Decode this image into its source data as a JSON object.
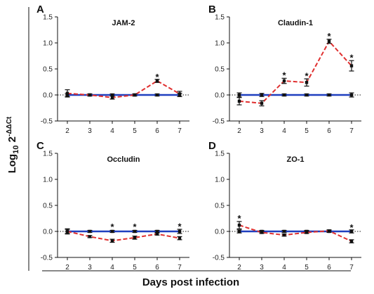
{
  "figure": {
    "xlabel": "Days post infection",
    "ylabel_base": "Log",
    "ylabel_sub": "10",
    "ylabel_tail": " 2",
    "ylabel_sup": "-ΔΔCt"
  },
  "chart_data": [
    {
      "type": "line",
      "panel_label": "A",
      "title": "JAM-2",
      "x": [
        2,
        3,
        4,
        5,
        6,
        7
      ],
      "xticks": [
        "2",
        "3",
        "4",
        "5",
        "6",
        "7"
      ],
      "yticks": [
        "-0.5",
        "0.0",
        "0.5",
        "1.0",
        "1.5"
      ],
      "ylim": [
        -0.5,
        1.5
      ],
      "series": [
        {
          "color": "#1f3fbf",
          "style": "solid",
          "values": [
            0.0,
            0.0,
            0.0,
            0.0,
            0.0,
            0.0
          ],
          "errors": [
            0.03,
            0.02,
            0.02,
            0.02,
            0.02,
            0.03
          ]
        },
        {
          "color": "#e03030",
          "style": "dashed",
          "values": [
            0.03,
            0.0,
            -0.05,
            0.0,
            0.27,
            0.02
          ],
          "errors": [
            0.07,
            0.02,
            0.03,
            0.02,
            0.03,
            0.05
          ]
        }
      ],
      "significant": [
        {
          "x": 6,
          "y": 0.3,
          "label": "*"
        }
      ]
    },
    {
      "type": "line",
      "panel_label": "B",
      "title": "Claudin-1",
      "x": [
        2,
        3,
        4,
        5,
        6,
        7
      ],
      "xticks": [
        "2",
        "3",
        "4",
        "5",
        "6",
        "7"
      ],
      "yticks": [
        "-0.5",
        "0.0",
        "0.5",
        "1.0",
        "1.5"
      ],
      "ylim": [
        -0.5,
        1.5
      ],
      "series": [
        {
          "color": "#1f3fbf",
          "style": "solid",
          "values": [
            0.0,
            0.0,
            0.0,
            0.0,
            0.0,
            0.0
          ],
          "errors": [
            0.04,
            0.03,
            0.02,
            0.02,
            0.02,
            0.04
          ]
        },
        {
          "color": "#e03030",
          "style": "dashed",
          "values": [
            -0.12,
            -0.16,
            0.27,
            0.24,
            1.03,
            0.56
          ],
          "errors": [
            0.07,
            0.05,
            0.05,
            0.07,
            0.04,
            0.1
          ]
        }
      ],
      "significant": [
        {
          "x": 4,
          "y": 0.33,
          "label": "*"
        },
        {
          "x": 5,
          "y": 0.32,
          "label": "*"
        },
        {
          "x": 6,
          "y": 1.08,
          "label": "*"
        },
        {
          "x": 7,
          "y": 0.67,
          "label": "*"
        }
      ]
    },
    {
      "type": "line",
      "panel_label": "C",
      "title": "Occludin",
      "x": [
        2,
        3,
        4,
        5,
        6,
        7
      ],
      "xticks": [
        "2",
        "3",
        "4",
        "5",
        "6",
        "7"
      ],
      "yticks": [
        "-0.5",
        "0.0",
        "0.5",
        "1.0",
        "1.5"
      ],
      "ylim": [
        -0.5,
        1.5
      ],
      "series": [
        {
          "color": "#1f3fbf",
          "style": "solid",
          "values": [
            0.0,
            0.0,
            0.0,
            0.0,
            0.0,
            0.0
          ],
          "errors": [
            0.04,
            0.02,
            0.02,
            0.02,
            0.02,
            0.04
          ]
        },
        {
          "color": "#e03030",
          "style": "dashed",
          "values": [
            0.0,
            -0.1,
            -0.18,
            -0.12,
            -0.05,
            -0.13
          ],
          "errors": [
            0.05,
            0.02,
            0.03,
            0.03,
            0.02,
            0.03
          ]
        }
      ],
      "significant": [
        {
          "x": 4,
          "y": 0.04,
          "label": "*"
        },
        {
          "x": 5,
          "y": 0.04,
          "label": "*"
        },
        {
          "x": 7,
          "y": 0.05,
          "label": "*"
        }
      ]
    },
    {
      "type": "line",
      "panel_label": "D",
      "title": "ZO-1",
      "x": [
        2,
        3,
        4,
        5,
        6,
        7
      ],
      "xticks": [
        "2",
        "3",
        "4",
        "5",
        "6",
        "7"
      ],
      "yticks": [
        "-0.5",
        "0.0",
        "0.5",
        "1.0",
        "1.5"
      ],
      "ylim": [
        -0.5,
        1.5
      ],
      "series": [
        {
          "color": "#1f3fbf",
          "style": "solid",
          "values": [
            0.0,
            0.0,
            0.0,
            0.0,
            0.0,
            0.0
          ],
          "errors": [
            0.03,
            0.02,
            0.02,
            0.02,
            0.02,
            0.03
          ]
        },
        {
          "color": "#e03030",
          "style": "dashed",
          "values": [
            0.12,
            -0.02,
            -0.07,
            -0.02,
            0.01,
            -0.19
          ],
          "errors": [
            0.07,
            0.02,
            0.02,
            0.02,
            0.02,
            0.03
          ]
        }
      ],
      "significant": [
        {
          "x": 2,
          "y": 0.2,
          "label": "*"
        },
        {
          "x": 7,
          "y": 0.03,
          "label": "*"
        }
      ]
    }
  ]
}
